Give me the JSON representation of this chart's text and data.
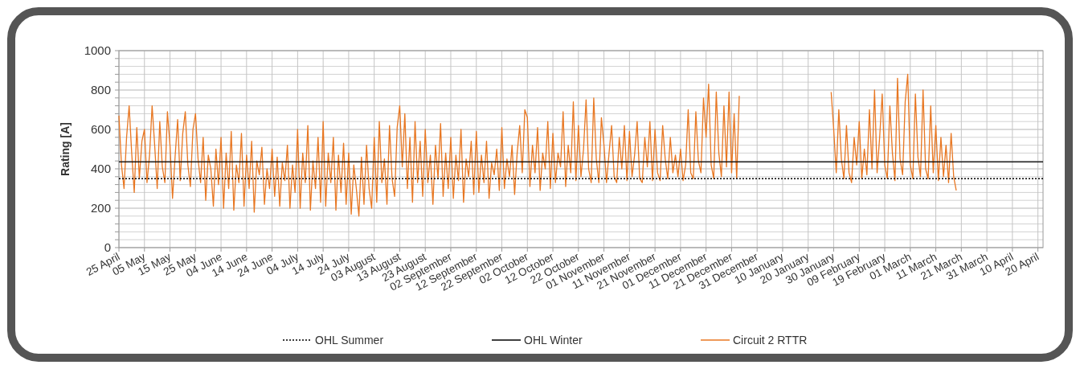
{
  "chart_data": {
    "type": "line",
    "ylabel": "Rating [A]",
    "categories": [
      "25 April",
      null,
      null,
      null,
      null,
      null,
      null,
      null,
      null,
      null,
      "05 May",
      null,
      null,
      null,
      null,
      null,
      null,
      null,
      null,
      null,
      "15 May",
      null,
      null,
      null,
      null,
      null,
      null,
      null,
      null,
      null,
      "25 May",
      null,
      null,
      null,
      null,
      null,
      null,
      null,
      null,
      null,
      "04 June",
      null,
      null,
      null,
      null,
      null,
      null,
      null,
      null,
      null,
      "14 June",
      null,
      null,
      null,
      null,
      null,
      null,
      null,
      null,
      null,
      "24 June",
      null,
      null,
      null,
      null,
      null,
      null,
      null,
      null,
      null,
      "04 July",
      null,
      null,
      null,
      null,
      null,
      null,
      null,
      null,
      null,
      "14 July",
      null,
      null,
      null,
      null,
      null,
      null,
      null,
      null,
      null,
      "24 July",
      null,
      null,
      null,
      null,
      null,
      null,
      null,
      null,
      null,
      "03 August",
      null,
      null,
      null,
      null,
      null,
      null,
      null,
      null,
      null,
      "13 August",
      null,
      null,
      null,
      null,
      null,
      null,
      null,
      null,
      null,
      "23 August",
      null,
      null,
      null,
      null,
      null,
      null,
      null,
      null,
      null,
      "02 September",
      null,
      null,
      null,
      null,
      null,
      null,
      null,
      null,
      null,
      "12 September",
      null,
      null,
      null,
      null,
      null,
      null,
      null,
      null,
      null,
      "22 September",
      null,
      null,
      null,
      null,
      null,
      null,
      null,
      null,
      null,
      "02 October",
      null,
      null,
      null,
      null,
      null,
      null,
      null,
      null,
      null,
      "12 October",
      null,
      null,
      null,
      null,
      null,
      null,
      null,
      null,
      null,
      "22 October",
      null,
      null,
      null,
      null,
      null,
      null,
      null,
      null,
      null,
      "01 November",
      null,
      null,
      null,
      null,
      null,
      null,
      null,
      null,
      null,
      "11 November",
      null,
      null,
      null,
      null,
      null,
      null,
      null,
      null,
      null,
      "21 November",
      null,
      null,
      null,
      null,
      null,
      null,
      null,
      null,
      null,
      "01 December",
      null,
      null,
      null,
      null,
      null,
      null,
      null,
      null,
      null,
      "11 December",
      null,
      null,
      null,
      null,
      null,
      null,
      null,
      null,
      null,
      "21 December",
      null,
      null,
      null,
      null,
      null,
      null,
      null,
      null,
      null,
      "31 December",
      null,
      null,
      null,
      null,
      null,
      null,
      null,
      null,
      null,
      "10 January",
      null,
      null,
      null,
      null,
      null,
      null,
      null,
      null,
      null,
      "20 January",
      null,
      null,
      null,
      null,
      null,
      null,
      null,
      null,
      null,
      "30 January",
      null,
      null,
      null,
      null,
      null,
      null,
      null,
      null,
      null,
      "09 February",
      null,
      null,
      null,
      null,
      null,
      null,
      null,
      null,
      null,
      "19 February",
      null,
      null,
      null,
      null,
      null,
      null,
      null,
      null,
      null,
      "01 March",
      null,
      null,
      null,
      null,
      null,
      null,
      null,
      null,
      null,
      "11 March",
      null,
      null,
      null,
      null,
      null,
      null,
      null,
      null,
      null,
      "21 March",
      null,
      null,
      null,
      null,
      null,
      null,
      null,
      null,
      null,
      "31 March",
      null,
      null,
      null,
      null,
      null,
      null,
      null,
      null,
      null,
      "10 April",
      null,
      null,
      null,
      null,
      null,
      null,
      null,
      null,
      null,
      "20 April",
      null,
      null
    ],
    "ylim": [
      0,
      1000
    ],
    "yticks": [
      0,
      {
        "value": 40,
        "label": null
      },
      {
        "value": 80,
        "label": null
      },
      {
        "value": 120,
        "label": null
      },
      {
        "value": 160,
        "label": null
      },
      200,
      {
        "value": 240,
        "label": null
      },
      {
        "value": 280,
        "label": null
      },
      {
        "value": 320,
        "label": null
      },
      {
        "value": 360,
        "label": null
      },
      400,
      {
        "value": 440,
        "label": null
      },
      {
        "value": 480,
        "label": null
      },
      {
        "value": 520,
        "label": null
      },
      {
        "value": 560,
        "label": null
      },
      600,
      {
        "value": 640,
        "label": null
      },
      {
        "value": 680,
        "label": null
      },
      {
        "value": 720,
        "label": null
      },
      {
        "value": 760,
        "label": null
      },
      800,
      {
        "value": 840,
        "label": null
      },
      {
        "value": 880,
        "label": null
      },
      {
        "value": 920,
        "label": null
      },
      {
        "value": 960,
        "label": null
      },
      1000
    ],
    "grid": true,
    "legend": "bottom",
    "ref_lines": [
      {
        "axis": "y",
        "value": 350,
        "label": "OHL Summer",
        "color": "#000000",
        "line_style": "dotted"
      },
      {
        "axis": "y",
        "value": 435,
        "label": "OHL Winter",
        "color": "#000000",
        "line_style": "solid"
      }
    ],
    "series": [
      {
        "name": "Circuit 2 RTTR",
        "color": "#e87722",
        "line_style": "solid",
        "values": [
          670,
          420,
          300,
          560,
          720,
          480,
          280,
          610,
          350,
          540,
          600,
          330,
          470,
          720,
          520,
          300,
          640,
          410,
          330,
          690,
          520,
          250,
          460,
          650,
          340,
          580,
          690,
          420,
          310,
          600,
          680,
          450,
          330,
          560,
          240,
          470,
          400,
          210,
          500,
          320,
          560,
          200,
          480,
          300,
          590,
          190,
          420,
          330,
          580,
          210,
          470,
          300,
          540,
          180,
          440,
          370,
          510,
          220,
          400,
          300,
          500,
          260,
          460,
          210,
          430,
          340,
          520,
          200,
          420,
          280,
          600,
          200,
          480,
          330,
          620,
          190,
          440,
          300,
          560,
          230,
          640,
          210,
          480,
          330,
          560,
          190,
          470,
          280,
          530,
          220,
          480,
          170,
          420,
          300,
          160,
          460,
          220,
          520,
          300,
          200,
          560,
          230,
          640,
          330,
          450,
          220,
          620,
          350,
          260,
          610,
          720,
          410,
          680,
          300,
          560,
          230,
          640,
          330,
          540,
          260,
          600,
          330,
          470,
          220,
          520,
          350,
          630,
          260,
          480,
          300,
          560,
          250,
          470,
          340,
          600,
          230,
          450,
          360,
          540,
          270,
          590,
          280,
          470,
          330,
          540,
          250,
          430,
          370,
          500,
          290,
          610,
          300,
          450,
          360,
          520,
          270,
          480,
          620,
          380,
          700,
          660,
          310,
          520,
          380,
          610,
          290,
          480,
          400,
          640,
          300,
          580,
          330,
          480,
          410,
          690,
          310,
          520,
          380,
          740,
          340,
          620,
          360,
          500,
          750,
          400,
          330,
          760,
          450,
          330,
          660,
          520,
          330,
          480,
          620,
          360,
          330,
          560,
          400,
          620,
          340,
          590,
          360,
          470,
          640,
          350,
          330,
          560,
          410,
          640,
          340,
          600,
          380,
          340,
          620,
          450,
          350,
          560,
          380,
          470,
          360,
          500,
          340,
          420,
          700,
          380,
          350,
          690,
          440,
          380,
          760,
          560,
          830,
          420,
          350,
          790,
          480,
          360,
          720,
          410,
          790,
          380,
          680,
          350,
          770,
          null,
          null,
          null,
          null,
          null,
          null,
          null,
          null,
          null,
          null,
          null,
          null,
          null,
          null,
          null,
          null,
          null,
          null,
          null,
          null,
          null,
          null,
          null,
          null,
          null,
          null,
          null,
          null,
          null,
          null,
          null,
          null,
          null,
          null,
          null,
          790,
          600,
          380,
          700,
          450,
          350,
          620,
          380,
          330,
          560,
          420,
          640,
          350,
          500,
          370,
          700,
          400,
          800,
          380,
          560,
          780,
          420,
          350,
          720,
          480,
          340,
          860,
          450,
          370,
          740,
          880,
          420,
          350,
          780,
          460,
          360,
          800,
          400,
          350,
          720,
          380,
          620,
          340,
          560,
          360,
          520,
          330,
          580,
          360,
          290,
          null,
          null,
          null,
          null,
          null,
          null,
          null,
          null,
          null,
          null,
          null,
          null,
          null,
          null,
          null,
          null,
          null,
          null,
          null,
          null,
          null,
          null,
          null,
          null,
          null,
          null,
          null,
          null,
          null,
          null,
          null,
          null,
          null,
          null
        ]
      }
    ]
  }
}
